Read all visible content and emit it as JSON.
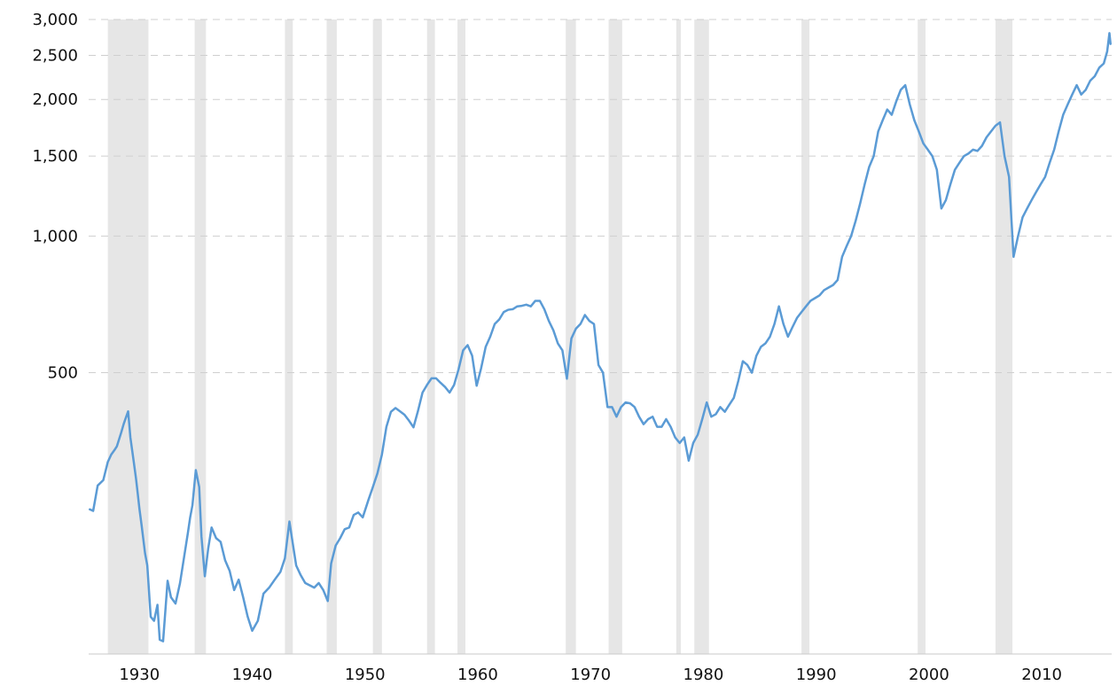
{
  "chart_data": {
    "type": "line",
    "title": "",
    "xlabel": "",
    "ylabel": "",
    "x_scale": "linear",
    "y_scale": "log",
    "x_range": [
      1925.5,
      2016.2
    ],
    "y_range": [
      120,
      3000
    ],
    "grid": "horizontal dashed",
    "legend": "none",
    "colors": {
      "line": "#5b9bd5",
      "recession": "#e6e6e6",
      "grid": "#cfcfcf",
      "text": "#111111"
    },
    "y_ticks": [
      {
        "value": 500,
        "label": "500"
      },
      {
        "value": 1000,
        "label": "1,000"
      },
      {
        "value": 1500,
        "label": "1,500"
      },
      {
        "value": 2000,
        "label": "2,000"
      },
      {
        "value": 2500,
        "label": "2,500"
      },
      {
        "value": 3000,
        "label": "3,000"
      }
    ],
    "x_ticks": [
      {
        "value": 1930,
        "label": "1930"
      },
      {
        "value": 1940,
        "label": "1940"
      },
      {
        "value": 1950,
        "label": "1950"
      },
      {
        "value": 1960,
        "label": "1960"
      },
      {
        "value": 1970,
        "label": "1970"
      },
      {
        "value": 1980,
        "label": "1980"
      },
      {
        "value": 1990,
        "label": "1990"
      },
      {
        "value": 2000,
        "label": "2000"
      },
      {
        "value": 2010,
        "label": "2010"
      }
    ],
    "recessions": [
      {
        "start": 1927.2,
        "end": 1930.8
      },
      {
        "start": 1934.9,
        "end": 1935.9
      },
      {
        "start": 1942.9,
        "end": 1943.6
      },
      {
        "start": 1946.6,
        "end": 1947.5
      },
      {
        "start": 1950.7,
        "end": 1951.5
      },
      {
        "start": 1955.5,
        "end": 1956.2
      },
      {
        "start": 1958.2,
        "end": 1958.9
      },
      {
        "start": 1967.8,
        "end": 1968.7
      },
      {
        "start": 1971.6,
        "end": 1972.8
      },
      {
        "start": 1977.6,
        "end": 1978.0
      },
      {
        "start": 1979.2,
        "end": 1980.5
      },
      {
        "start": 1988.7,
        "end": 1989.4
      },
      {
        "start": 1999.0,
        "end": 1999.7
      },
      {
        "start": 2005.9,
        "end": 2007.4
      }
    ],
    "series": [
      {
        "x": [
          1925.6,
          1925.9,
          1926.3,
          1926.8,
          1927.2,
          1927.5,
          1927.8,
          1928.0,
          1928.4,
          1928.6,
          1928.8,
          1929.0,
          1929.2,
          1929.5,
          1929.7,
          1929.85,
          1930.0,
          1930.2,
          1930.5,
          1930.7,
          1931.0,
          1931.3,
          1931.6,
          1931.8,
          1932.1,
          1932.5,
          1932.8,
          1933.2,
          1933.6,
          1934.0,
          1934.3,
          1934.5,
          1934.7,
          1935.0,
          1935.3,
          1935.5,
          1935.8,
          1936.1,
          1936.4,
          1936.8,
          1937.2,
          1937.6,
          1938.0,
          1938.4,
          1938.8,
          1939.2,
          1939.6,
          1940.0,
          1940.5,
          1941.0,
          1941.5,
          1942.0,
          1942.5,
          1942.9,
          1943.3,
          1943.6,
          1943.9,
          1944.3,
          1944.7,
          1945.1,
          1945.5,
          1945.9,
          1946.3,
          1946.7,
          1947.0,
          1947.4,
          1947.8,
          1948.2,
          1948.6,
          1949.0,
          1949.4,
          1949.8,
          1950.3,
          1950.7,
          1951.1,
          1951.5,
          1951.9,
          1952.3,
          1952.7,
          1953.1,
          1953.5,
          1953.9,
          1954.3,
          1954.7,
          1955.1,
          1955.5,
          1955.9,
          1956.3,
          1956.7,
          1957.1,
          1957.5,
          1957.9,
          1958.3,
          1958.7,
          1959.1,
          1959.5,
          1959.9,
          1960.3,
          1960.7,
          1961.1,
          1961.5,
          1961.9,
          1962.3,
          1962.7,
          1963.1,
          1963.5,
          1963.9,
          1964.3,
          1964.7,
          1965.1,
          1965.5,
          1965.9,
          1966.3,
          1966.7,
          1967.1,
          1967.5,
          1967.9,
          1968.3,
          1968.7,
          1969.1,
          1969.5,
          1969.9,
          1970.3,
          1970.7,
          1971.1,
          1971.5,
          1971.9,
          1972.3,
          1972.7,
          1973.1,
          1973.5,
          1973.9,
          1974.3,
          1974.7,
          1975.1,
          1975.5,
          1975.9,
          1976.3,
          1976.7,
          1977.1,
          1977.5,
          1977.9,
          1978.3,
          1978.7,
          1979.1,
          1979.5,
          1979.9,
          1980.3,
          1980.7,
          1981.1,
          1981.5,
          1981.9,
          1982.3,
          1982.7,
          1983.1,
          1983.5,
          1983.9,
          1984.3,
          1984.7,
          1985.1,
          1985.5,
          1985.9,
          1986.3,
          1986.7,
          1987.1,
          1987.5,
          1987.9,
          1988.3,
          1988.7,
          1989.1,
          1989.5,
          1989.9,
          1990.3,
          1990.7,
          1991.1,
          1991.5,
          1991.9,
          1992.3,
          1992.7,
          1993.1,
          1993.5,
          1993.9,
          1994.3,
          1994.7,
          1995.1,
          1995.5,
          1995.9,
          1996.3,
          1996.7,
          1997.1,
          1997.5,
          1997.9,
          1998.3,
          1998.7,
          1999.1,
          1999.5,
          1999.9,
          2000.3,
          2000.7,
          2001.1,
          2001.5,
          2001.9,
          2002.3,
          2002.7,
          2003.1,
          2003.5,
          2003.9,
          2004.3,
          2004.7,
          2005.1,
          2005.5,
          2005.9,
          2006.3,
          2006.7,
          2007.1,
          2007.5,
          2007.9,
          2008.3,
          2008.7,
          2009.1,
          2009.5,
          2009.9,
          2010.3,
          2010.7,
          2011.1,
          2011.5,
          2011.9,
          2012.3,
          2012.7,
          2013.1,
          2013.5,
          2013.9,
          2014.3,
          2014.7,
          2015.1,
          2015.5,
          2015.8,
          2016.0,
          2016.1
        ],
        "y": [
          250,
          248,
          282,
          290,
          318,
          330,
          338,
          344,
          370,
          385,
          398,
          411,
          360,
          318,
          292,
          271,
          251,
          230,
          200,
          188,
          145,
          142,
          154,
          129,
          128,
          174,
          160,
          155,
          172,
          199,
          222,
          240,
          255,
          305,
          280,
          218,
          178,
          205,
          228,
          216,
          212,
          193,
          183,
          166,
          175,
          160,
          145,
          135,
          142,
          163,
          168,
          175,
          182,
          195,
          235,
          210,
          188,
          179,
          172,
          170,
          168,
          172,
          166,
          157,
          190,
          208,
          216,
          226,
          228,
          243,
          246,
          240,
          262,
          280,
          300,
          330,
          380,
          410,
          418,
          411,
          404,
          392,
          379,
          412,
          452,
          470,
          486,
          486,
          475,
          465,
          452,
          470,
          509,
          560,
          575,
          545,
          468,
          512,
          570,
          600,
          640,
          655,
          680,
          688,
          690,
          700,
          702,
          706,
          700,
          720,
          720,
          690,
          650,
          620,
          580,
          560,
          485,
          595,
          625,
          640,
          670,
          650,
          640,
          520,
          500,
          420,
          420,
          400,
          420,
          430,
          428,
          420,
          400,
          385,
          395,
          400,
          380,
          380,
          395,
          380,
          360,
          350,
          360,
          320,
          350,
          365,
          395,
          430,
          400,
          405,
          420,
          410,
          425,
          440,
          480,
          530,
          520,
          500,
          545,
          570,
          580,
          600,
          640,
          700,
          640,
          600,
          630,
          660,
          680,
          700,
          720,
          730,
          740,
          760,
          770,
          780,
          800,
          900,
          950,
          1000,
          1080,
          1180,
          1300,
          1420,
          1500,
          1700,
          1800,
          1900,
          1850,
          1980,
          2100,
          2150,
          1950,
          1800,
          1700,
          1600,
          1550,
          1500,
          1400,
          1150,
          1200,
          1300,
          1400,
          1450,
          1500,
          1520,
          1550,
          1540,
          1580,
          1650,
          1700,
          1750,
          1780,
          1500,
          1350,
          900,
          1000,
          1100,
          1150,
          1200,
          1250,
          1300,
          1350,
          1450,
          1550,
          1700,
          1850,
          1950,
          2050,
          2150,
          2050,
          2100,
          2200,
          2250,
          2350,
          2400,
          2550,
          2800,
          2650
        ]
      }
    ]
  }
}
